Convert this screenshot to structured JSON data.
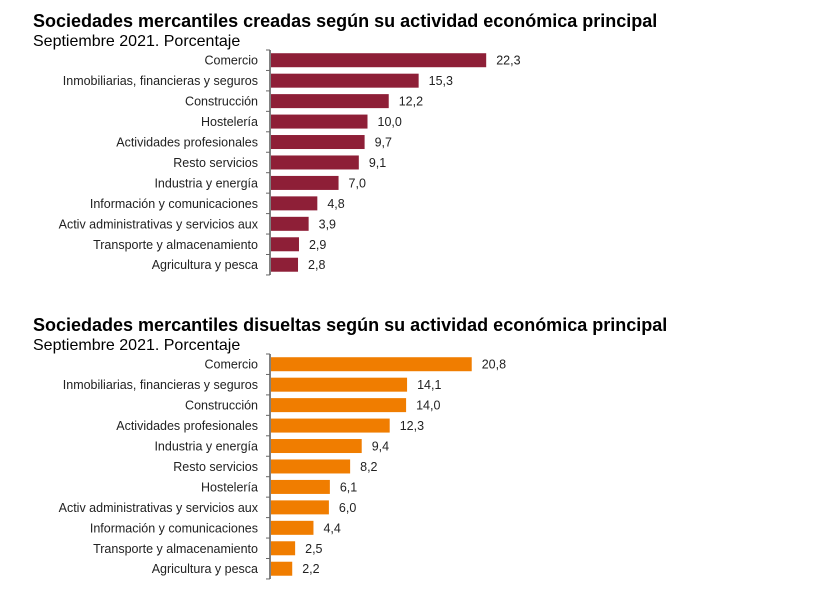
{
  "chart_data": [
    {
      "type": "bar",
      "orientation": "horizontal",
      "title": "Sociedades mercantiles creadas según su actividad económica principal",
      "subtitle": "Septiembre 2021. Porcentaje",
      "color": "#8e1f37",
      "categories": [
        "Comercio",
        "Inmobiliarias, financieras y seguros",
        "Construcción",
        "Hostelería",
        "Actividades profesionales",
        "Resto servicios",
        "Industria y energía",
        "Información y comunicaciones",
        "Activ administrativas y servicios aux",
        "Transporte y almacenamiento",
        "Agricultura y pesca"
      ],
      "values": [
        22.3,
        15.3,
        12.2,
        10.0,
        9.7,
        9.1,
        7.0,
        4.8,
        3.9,
        2.9,
        2.8
      ],
      "labels": [
        "22,3",
        "15,3",
        "12,2",
        "10,0",
        "9,7",
        "9,1",
        "7,0",
        "4,8",
        "3,9",
        "2,9",
        "2,8"
      ],
      "grid": false
    },
    {
      "type": "bar",
      "orientation": "horizontal",
      "title": "Sociedades mercantiles disueltas según su actividad económica principal",
      "subtitle": "Septiembre 2021. Porcentaje",
      "color": "#f07d00",
      "categories": [
        "Comercio",
        "Inmobiliarias, financieras y seguros",
        "Construcción",
        "Actividades profesionales",
        "Industria y energía",
        "Resto servicios",
        "Hostelería",
        "Activ administrativas y servicios aux",
        "Información y comunicaciones",
        "Transporte y almacenamiento",
        "Agricultura y pesca"
      ],
      "values": [
        20.8,
        14.1,
        14.0,
        12.3,
        9.4,
        8.2,
        6.1,
        6.0,
        4.4,
        2.5,
        2.2
      ],
      "labels": [
        "20,8",
        "14,1",
        "14,0",
        "12,3",
        "9,4",
        "8,2",
        "6,1",
        "6,0",
        "4,4",
        "2,5",
        "2,2"
      ],
      "grid": false
    }
  ]
}
